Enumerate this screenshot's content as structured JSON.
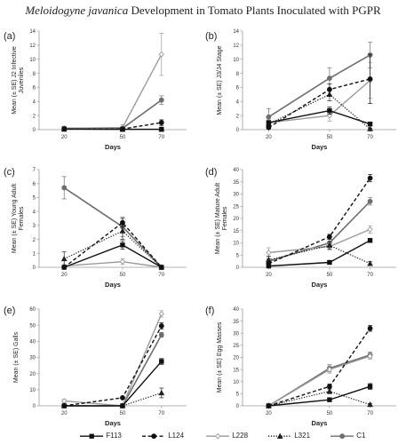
{
  "figure": {
    "title_italic": "Meloidogyne javanica",
    "title_rest": " Development in Tomato Plants Inoculated with PGPR"
  },
  "colors": {
    "F113": "#111111",
    "L124": "#111111",
    "L228": "#9a9a9a",
    "L321": "#222222",
    "C1": "#6e6e6e",
    "axis": "#9a9a9a"
  },
  "legend": [
    "F113",
    "L124",
    "L228",
    "L321",
    "C1"
  ],
  "chart_data": [
    {
      "panel": "(a)",
      "type": "line",
      "xlabel": "Days",
      "ylabel": "Mean (± SE) J2 Infective Juveniles",
      "x": [
        20,
        50,
        70
      ],
      "ylim": [
        0,
        14
      ],
      "yticks": [
        0,
        2,
        4,
        6,
        8,
        10,
        12,
        14
      ],
      "grid": false,
      "series": [
        {
          "name": "F113",
          "values": [
            0.1,
            0.05,
            0.05
          ],
          "err": [
            0.05,
            0.05,
            0.05
          ]
        },
        {
          "name": "L124",
          "values": [
            0.1,
            0.1,
            1.0
          ],
          "err": [
            0.05,
            0.1,
            0.4
          ]
        },
        {
          "name": "L228",
          "values": [
            0.2,
            0.3,
            10.7
          ],
          "err": [
            0.1,
            0.4,
            3.0
          ]
        },
        {
          "name": "L321",
          "values": [
            0.05,
            0.05,
            0.05
          ],
          "err": [
            0.05,
            0.05,
            0.05
          ]
        },
        {
          "name": "C1",
          "values": [
            0.2,
            0.2,
            4.2
          ],
          "err": [
            0.1,
            0.2,
            0.6
          ]
        }
      ]
    },
    {
      "panel": "(b)",
      "type": "line",
      "xlabel": "Days",
      "ylabel": "Mean (± SE) J3/J4 Stage",
      "x": [
        20,
        50,
        70
      ],
      "ylim": [
        0,
        14
      ],
      "yticks": [
        0,
        2,
        4,
        6,
        8,
        10,
        12,
        14
      ],
      "grid": false,
      "series": [
        {
          "name": "F113",
          "values": [
            1.0,
            2.7,
            0.8
          ],
          "err": [
            0.2,
            0.5,
            0.2
          ]
        },
        {
          "name": "L124",
          "values": [
            0.3,
            5.7,
            7.2
          ],
          "err": [
            0.2,
            0.8,
            3.5
          ]
        },
        {
          "name": "L228",
          "values": [
            1.0,
            2.0,
            7.0
          ],
          "err": [
            0.4,
            0.8,
            2.5
          ]
        },
        {
          "name": "L321",
          "values": [
            0.8,
            5.0,
            0.1
          ],
          "err": [
            0.3,
            0.9,
            0.1
          ]
        },
        {
          "name": "C1",
          "values": [
            1.8,
            7.3,
            10.6
          ],
          "err": [
            1.2,
            1.5,
            1.8
          ]
        }
      ]
    },
    {
      "panel": "(c)",
      "type": "line",
      "xlabel": "Days",
      "ylabel": "Mean (± SE) Young Adult Females",
      "x": [
        20,
        50,
        70
      ],
      "ylim": [
        0,
        7
      ],
      "yticks": [
        0,
        1,
        2,
        3,
        4,
        5,
        6,
        7
      ],
      "grid": false,
      "series": [
        {
          "name": "F113",
          "values": [
            0.0,
            1.6,
            0.0
          ],
          "err": [
            0.05,
            0.3,
            0.05
          ]
        },
        {
          "name": "L124",
          "values": [
            0.0,
            3.2,
            0.0
          ],
          "err": [
            0.05,
            0.3,
            0.05
          ]
        },
        {
          "name": "L228",
          "values": [
            0.1,
            0.4,
            0.0
          ],
          "err": [
            0.05,
            0.2,
            0.05
          ]
        },
        {
          "name": "L321",
          "values": [
            0.6,
            2.6,
            0.0
          ],
          "err": [
            0.5,
            0.6,
            0.05
          ]
        },
        {
          "name": "C1",
          "values": [
            5.7,
            2.9,
            0.0
          ],
          "err": [
            0.8,
            0.7,
            0.05
          ]
        }
      ]
    },
    {
      "panel": "(d)",
      "type": "line",
      "xlabel": "Days",
      "ylabel": "Mean (± SE) Mature Adult Females",
      "x": [
        20,
        50,
        70
      ],
      "ylim": [
        0,
        40
      ],
      "yticks": [
        0,
        5,
        10,
        15,
        20,
        25,
        30,
        35,
        40
      ],
      "grid": false,
      "series": [
        {
          "name": "F113",
          "values": [
            0.5,
            2.0,
            11.0
          ],
          "err": [
            0.3,
            0.5,
            0.8
          ]
        },
        {
          "name": "L124",
          "values": [
            1.5,
            12.5,
            36.5
          ],
          "err": [
            0.8,
            1.0,
            1.5
          ]
        },
        {
          "name": "L228",
          "values": [
            6.0,
            8.5,
            15.5
          ],
          "err": [
            2.0,
            1.5,
            1.5
          ]
        },
        {
          "name": "L321",
          "values": [
            3.0,
            9.0,
            1.5
          ],
          "err": [
            1.5,
            1.5,
            0.8
          ]
        },
        {
          "name": "C1",
          "values": [
            2.5,
            10.0,
            27.0
          ],
          "err": [
            1.0,
            1.5,
            1.5
          ]
        }
      ]
    },
    {
      "panel": "(e)",
      "type": "line",
      "xlabel": "Days",
      "ylabel": "Mean (± SE) Galls",
      "x": [
        20,
        50,
        70
      ],
      "ylim": [
        0,
        60
      ],
      "yticks": [
        0,
        10,
        20,
        30,
        40,
        50,
        60
      ],
      "grid": false,
      "series": [
        {
          "name": "F113",
          "values": [
            0.0,
            0.0,
            27.5
          ],
          "err": [
            0.3,
            0.3,
            1.8
          ]
        },
        {
          "name": "L124",
          "values": [
            0.0,
            5.0,
            49.5
          ],
          "err": [
            0.3,
            0.5,
            2.0
          ]
        },
        {
          "name": "L228",
          "values": [
            3.0,
            0.0,
            57.0
          ],
          "err": [
            1.0,
            0.3,
            2.0
          ]
        },
        {
          "name": "L321",
          "values": [
            0.0,
            0.0,
            8.0
          ],
          "err": [
            0.3,
            0.3,
            3.0
          ]
        },
        {
          "name": "C1",
          "values": [
            0.0,
            0.0,
            44.0
          ],
          "err": [
            0.3,
            0.3,
            1.5
          ]
        }
      ]
    },
    {
      "panel": "(f)",
      "type": "line",
      "xlabel": "Days",
      "ylabel": "Mean (± SE) Egg Masses",
      "x": [
        20,
        50,
        70
      ],
      "ylim": [
        0,
        40
      ],
      "yticks": [
        0,
        5,
        10,
        15,
        20,
        25,
        30,
        35,
        40
      ],
      "grid": false,
      "series": [
        {
          "name": "F113",
          "values": [
            0.0,
            2.5,
            8.0
          ],
          "err": [
            0.2,
            0.5,
            1.2
          ]
        },
        {
          "name": "L124",
          "values": [
            0.0,
            8.0,
            32.0
          ],
          "err": [
            0.2,
            1.0,
            1.2
          ]
        },
        {
          "name": "L228",
          "values": [
            0.0,
            15.0,
            20.5
          ],
          "err": [
            0.2,
            1.5,
            1.2
          ]
        },
        {
          "name": "L321",
          "values": [
            0.0,
            6.0,
            0.5
          ],
          "err": [
            0.2,
            1.0,
            0.5
          ]
        },
        {
          "name": "C1",
          "values": [
            0.0,
            15.5,
            21.0
          ],
          "err": [
            0.2,
            1.5,
            1.2
          ]
        }
      ]
    }
  ]
}
